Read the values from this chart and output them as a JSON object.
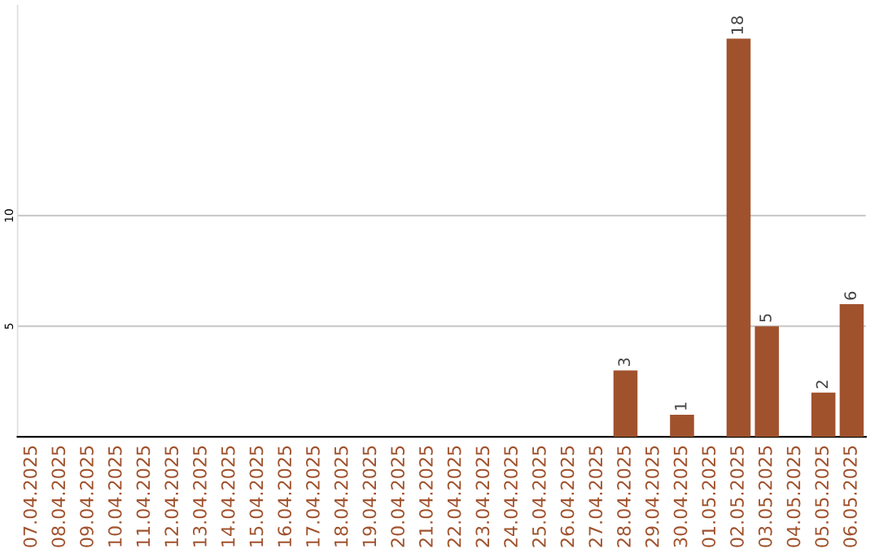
{
  "chart_data": {
    "type": "bar",
    "categories": [
      "07.04.2025",
      "08.04.2025",
      "09.04.2025",
      "10.04.2025",
      "11.04.2025",
      "12.04.2025",
      "13.04.2025",
      "14.04.2025",
      "15.04.2025",
      "16.04.2025",
      "17.04.2025",
      "18.04.2025",
      "19.04.2025",
      "20.04.2025",
      "21.04.2025",
      "22.04.2025",
      "23.04.2025",
      "24.04.2025",
      "25.04.2025",
      "26.04.2025",
      "27.04.2025",
      "28.04.2025",
      "29.04.2025",
      "30.04.2025",
      "01.05.2025",
      "02.05.2025",
      "03.05.2025",
      "04.05.2025",
      "05.05.2025",
      "06.05.2025"
    ],
    "values": [
      0,
      0,
      0,
      0,
      0,
      0,
      0,
      0,
      0,
      0,
      0,
      0,
      0,
      0,
      0,
      0,
      0,
      0,
      0,
      0,
      0,
      3,
      0,
      1,
      0,
      18,
      5,
      0,
      2,
      6
    ],
    "value_labels": [
      null,
      null,
      null,
      null,
      null,
      null,
      null,
      null,
      null,
      null,
      null,
      null,
      null,
      null,
      null,
      null,
      null,
      null,
      null,
      null,
      null,
      "3",
      null,
      "1",
      null,
      "18",
      "5",
      null,
      "2",
      "6"
    ],
    "color": "#a0522d",
    "ylim": [
      0,
      19.5
    ],
    "yticks": [
      5,
      10
    ],
    "grid": "y",
    "legend": false
  }
}
